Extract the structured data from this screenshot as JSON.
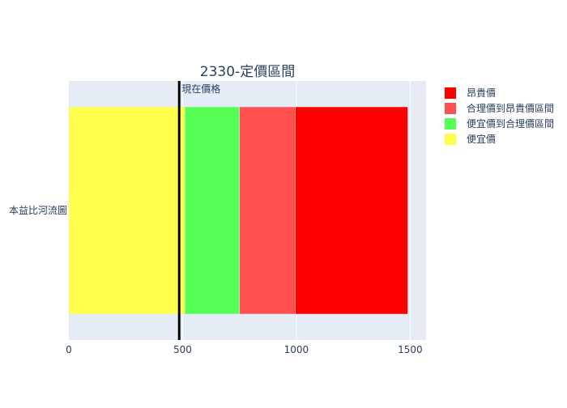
{
  "chart_data": {
    "type": "bar",
    "orientation": "horizontal",
    "barmode": "stack",
    "title": "2330-定價區間",
    "category": "本益比河流圖",
    "x_ticks": [
      "0",
      "500",
      "1000",
      "1500"
    ],
    "xlim": [
      0,
      1570
    ],
    "grid": true,
    "legend_position": "right",
    "segments": [
      {
        "name": "便宜價",
        "value": 510,
        "color": "#ffff4d"
      },
      {
        "name": "便宜價到合理價區間",
        "value": 240,
        "color": "#55ff55"
      },
      {
        "name": "合理價到昂貴價區間",
        "value": 245,
        "color": "#ff5050"
      },
      {
        "name": "昂貴價",
        "value": 495,
        "color": "#ff0000"
      }
    ],
    "legend": [
      "昂貴價",
      "合理價到昂貴價區間",
      "便宜價到合理價區間",
      "便宜價"
    ],
    "current_price": {
      "label": "現在價格",
      "value": 485,
      "color": "#000000"
    },
    "plot_background": "#e5ecf6",
    "text_color": "#2a3f5f"
  }
}
